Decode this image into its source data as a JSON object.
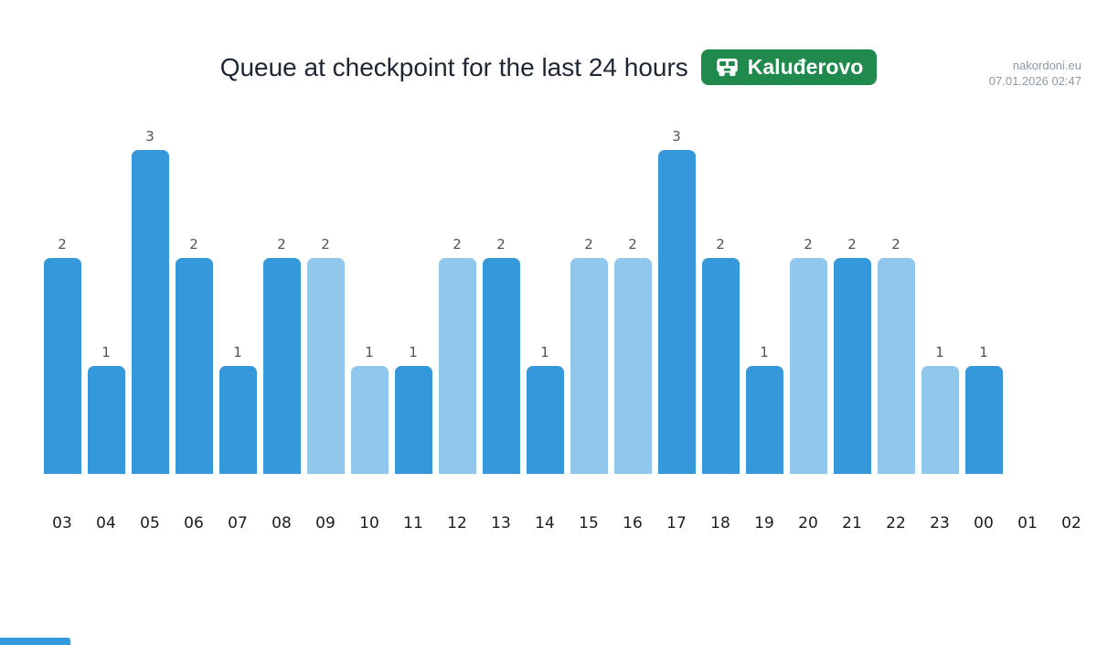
{
  "header": {
    "site": "nakordoni.eu",
    "timestamp": "07.01.2026 02:47"
  },
  "title": {
    "text": "Queue at checkpoint for the last 24 hours",
    "badge_label": "Kaluđerovo",
    "badge_color": "#1f8a4c",
    "badge_icon": "car-icon"
  },
  "chart_data": {
    "type": "bar",
    "title": "Queue at checkpoint for the last 24 hours",
    "checkpoint": "Kaluđerovo",
    "categories": [
      "03",
      "04",
      "05",
      "06",
      "07",
      "08",
      "09",
      "10",
      "11",
      "12",
      "13",
      "14",
      "15",
      "16",
      "17",
      "18",
      "19",
      "20",
      "21",
      "22",
      "23",
      "00",
      "01",
      "02"
    ],
    "values": [
      2,
      1,
      3,
      2,
      1,
      2,
      2,
      1,
      1,
      2,
      2,
      1,
      2,
      2,
      3,
      2,
      1,
      2,
      2,
      2,
      1,
      1,
      0,
      0
    ],
    "bar_styles": [
      "dark",
      "dark",
      "dark",
      "dark",
      "dark",
      "dark",
      "light",
      "light",
      "dark",
      "light",
      "dark",
      "dark",
      "light",
      "light",
      "dark",
      "dark",
      "dark",
      "light",
      "dark",
      "light",
      "light",
      "dark",
      "none",
      "none"
    ],
    "colors": {
      "dark": "#3498db",
      "light": "#90c7eb"
    },
    "xlabel": "",
    "ylabel": "",
    "ylim": [
      0,
      3
    ],
    "grid": false,
    "value_labels": true,
    "legend": false
  }
}
